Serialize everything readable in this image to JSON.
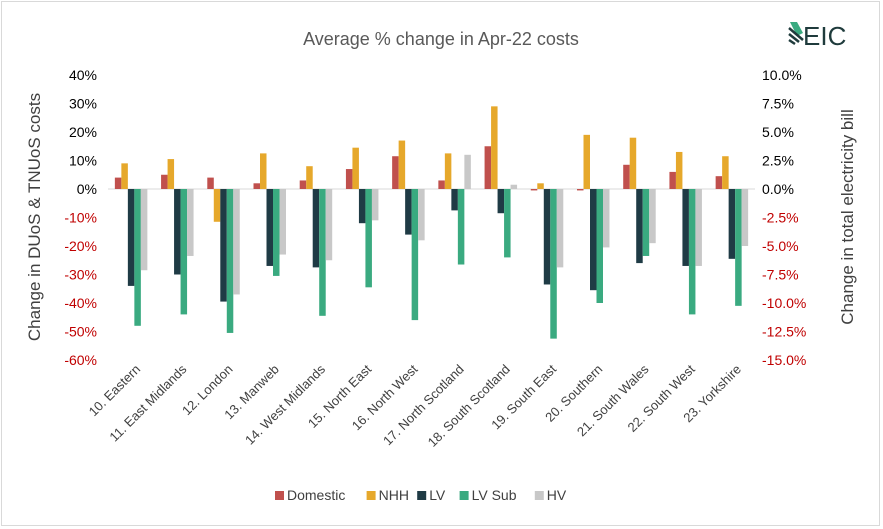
{
  "logo": {
    "text": "EIC",
    "color": "#1f3b3c"
  },
  "chart_data": {
    "type": "bar",
    "title": "Average % change in Apr-22 costs",
    "ylabel": "Change in DUoS & TNUoS costs",
    "y2label": "Change in total electricity bill",
    "ylim": [
      -60,
      40
    ],
    "y2lim": [
      -15,
      10
    ],
    "yticks": [
      "40%",
      "30%",
      "20%",
      "10%",
      "0%",
      "-10%",
      "-20%",
      "-30%",
      "-40%",
      "-50%",
      "-60%"
    ],
    "y2ticks": [
      "10.0%",
      "7.5%",
      "5.0%",
      "2.5%",
      "0.0%",
      "-2.5%",
      "-5.0%",
      "-7.5%",
      "-10.0%",
      "-12.5%",
      "-15.0%"
    ],
    "y2_tick_color_positive": "#000000",
    "y2_tick_color_negative": "#c00000",
    "y_tick_color_positive": "#000000",
    "y_tick_color_negative": "#c00000",
    "grid": false,
    "legend_position": "bottom",
    "categories": [
      "10. Eastern",
      "11. East Midlands",
      "12. London",
      "13. Manweb",
      "14. West Midlands",
      "15. North East",
      "16. North West",
      "17. North Scotland",
      "18. South Scotland",
      "19. South East",
      "20. Southern",
      "21. South Wales",
      "22. South West",
      "23. Yorkshire"
    ],
    "series": [
      {
        "name": "Domestic",
        "color": "#c0504d",
        "values": [
          4,
          5,
          4,
          2,
          3,
          7,
          11.5,
          3,
          15,
          -0.5,
          -0.5,
          8.5,
          6,
          4.5
        ]
      },
      {
        "name": "NHH",
        "color": "#e6a82b",
        "values": [
          9,
          10.5,
          -11.5,
          12.5,
          8,
          14.5,
          17,
          12.5,
          29,
          2,
          19,
          18,
          13,
          11.5
        ]
      },
      {
        "name": "LV",
        "color": "#1f3b45",
        "values": [
          -34,
          -30,
          -39.5,
          -27,
          -27.5,
          -12,
          -16,
          -7.5,
          -8.5,
          -33.5,
          -35.5,
          -26,
          -27,
          -24.5
        ]
      },
      {
        "name": "LV Sub",
        "color": "#3aaa80",
        "values": [
          -48,
          -44,
          -50.5,
          -30.5,
          -44.5,
          -34.5,
          -46,
          -26.5,
          -24,
          -52.5,
          -40,
          -23.5,
          -44,
          -41
        ]
      },
      {
        "name": "HV",
        "color": "#c8c8c8",
        "values": [
          -28.5,
          -23.5,
          -37,
          -23,
          -25,
          -11,
          -18,
          12,
          1.5,
          -27.5,
          -20.5,
          -19,
          -27,
          -20
        ]
      }
    ]
  }
}
